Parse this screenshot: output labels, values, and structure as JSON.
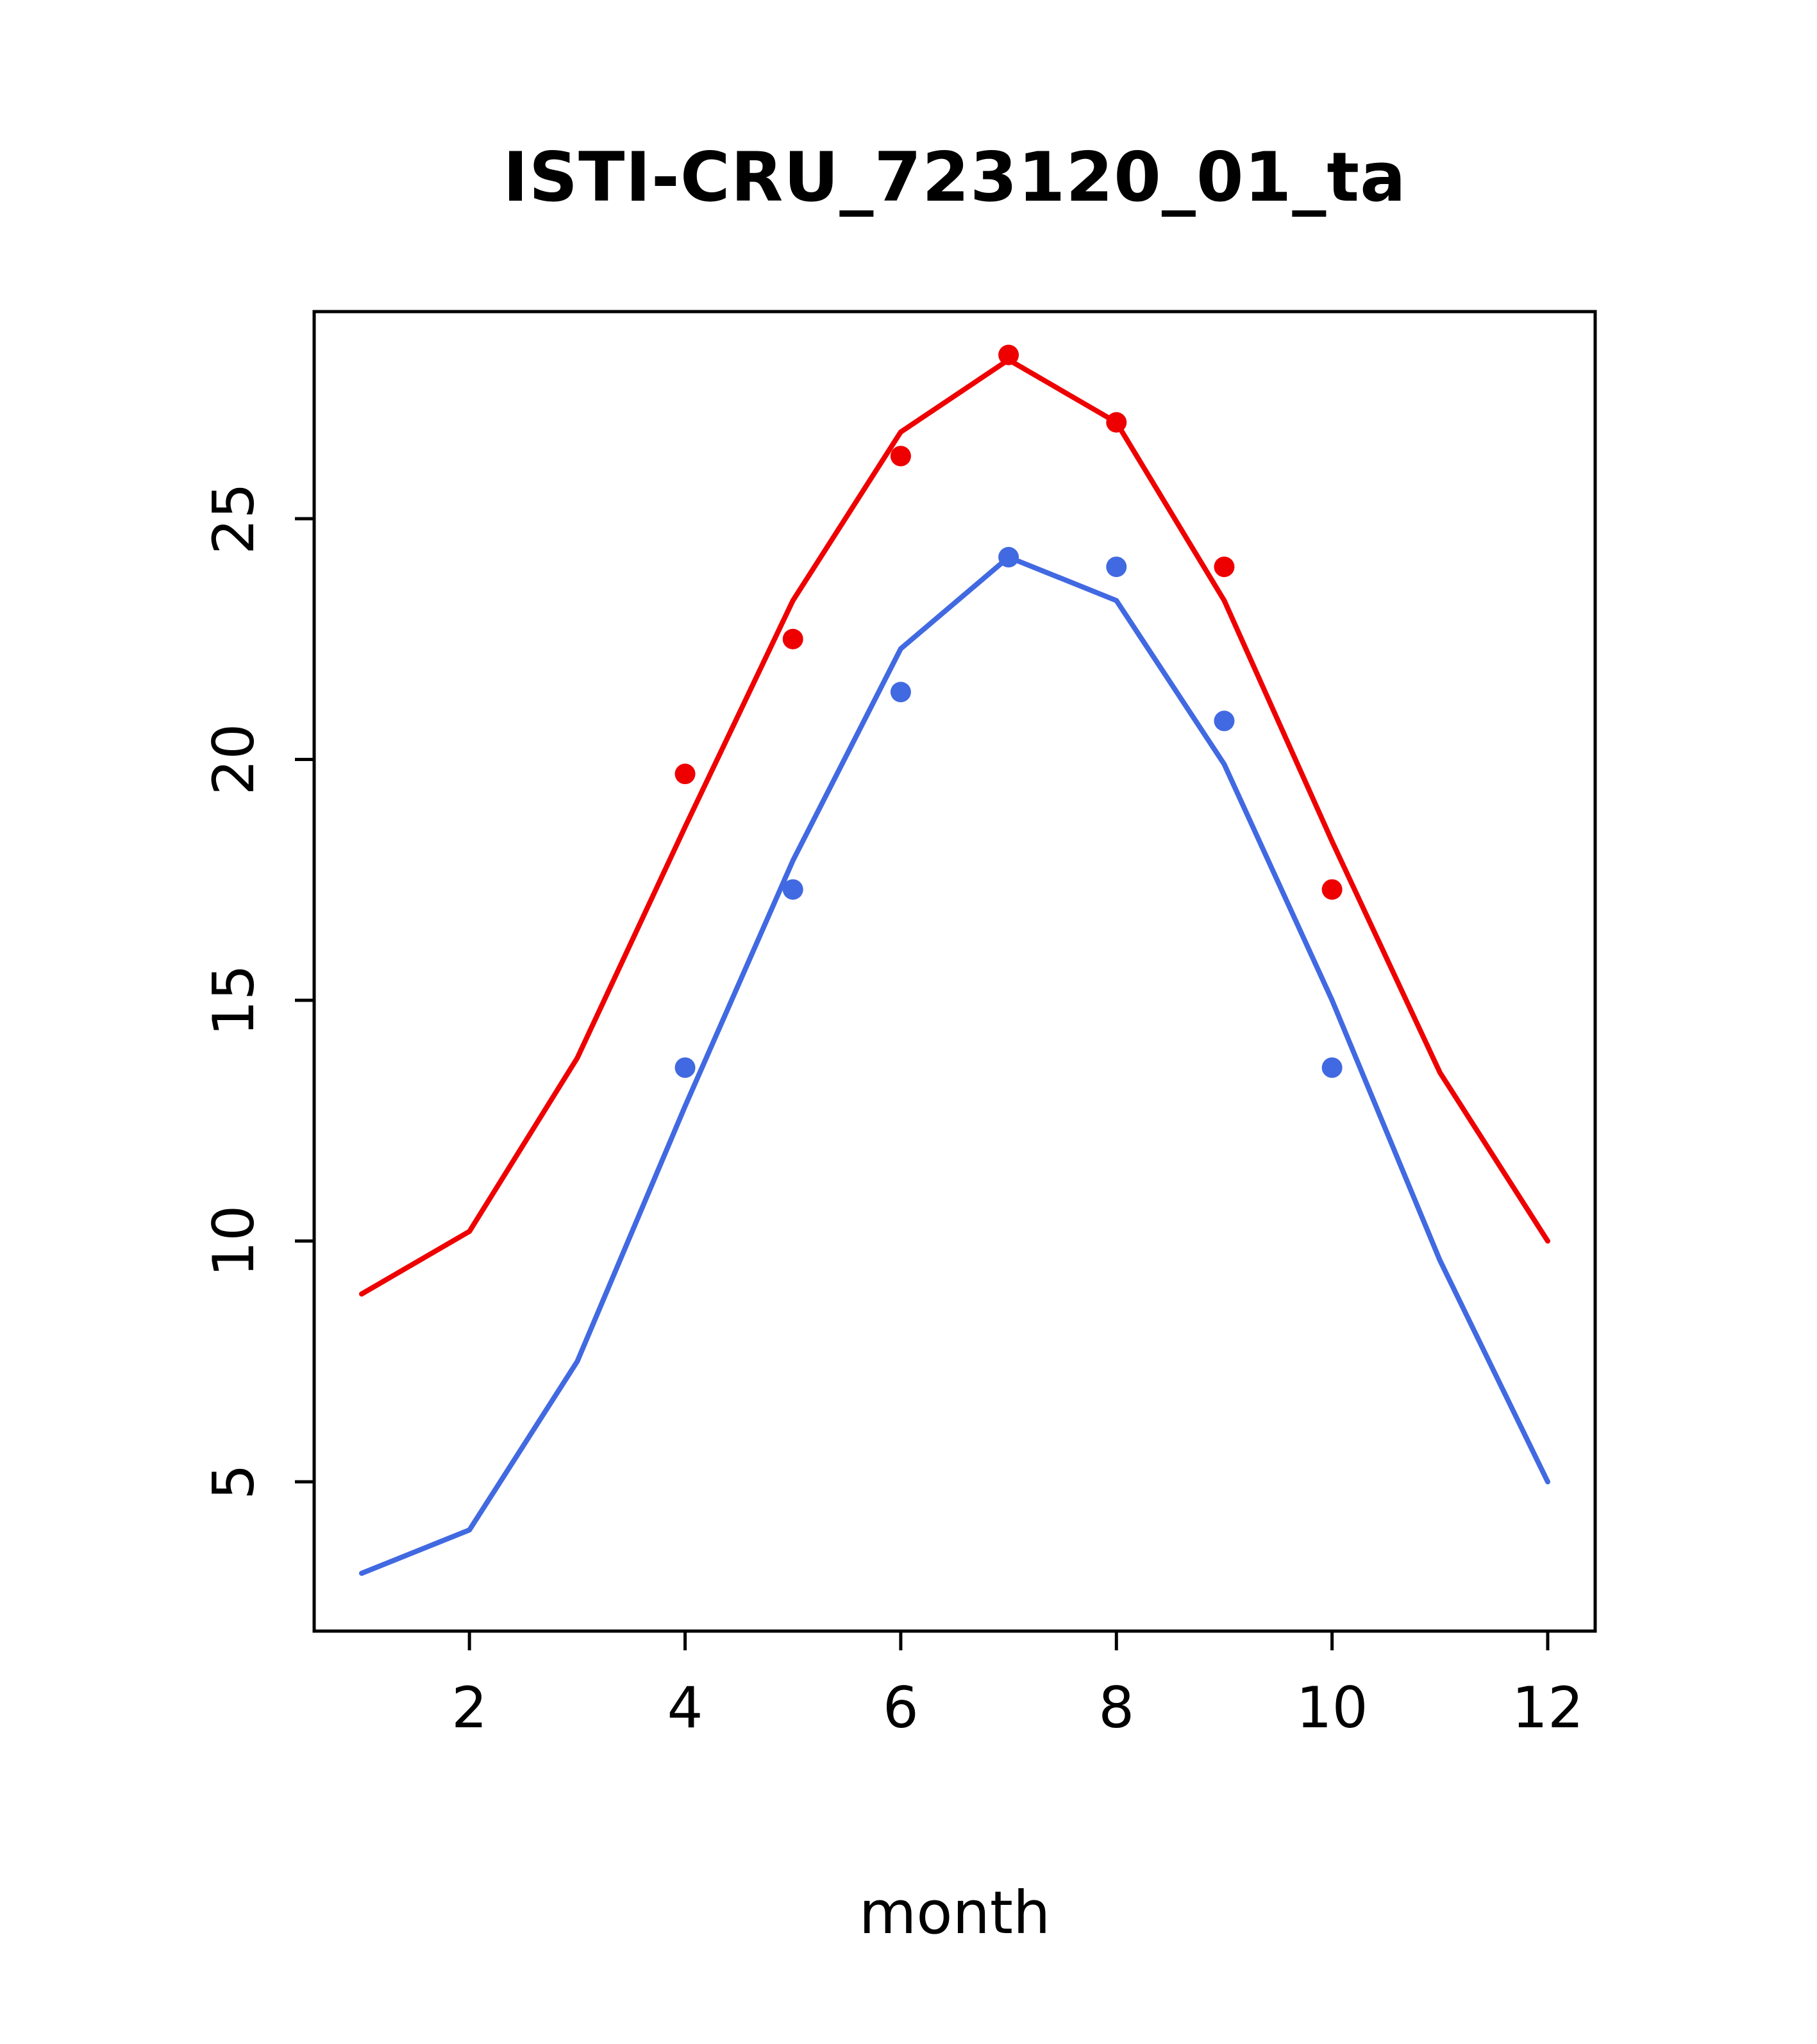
{
  "chart_data": {
    "type": "line",
    "title": "ISTI-CRU_723120_01_ta",
    "xlabel": "month",
    "ylabel": "",
    "x": [
      1,
      2,
      3,
      4,
      5,
      6,
      7,
      8,
      9,
      10,
      11,
      12
    ],
    "series": [
      {
        "name": "red-line",
        "kind": "line",
        "color": "#ee0000",
        "values": [
          8.9,
          10.2,
          13.8,
          18.6,
          23.3,
          26.8,
          28.3,
          27.0,
          23.3,
          18.3,
          13.5,
          10.0
        ]
      },
      {
        "name": "blue-line",
        "kind": "line",
        "color": "#4169e1",
        "values": [
          3.1,
          4.0,
          7.5,
          12.8,
          17.9,
          22.3,
          24.2,
          23.3,
          19.9,
          15.0,
          9.6,
          5.0
        ]
      },
      {
        "name": "red-points",
        "kind": "scatter",
        "color": "#ee0000",
        "x": [
          4,
          5,
          6,
          7,
          8,
          9,
          10
        ],
        "values": [
          19.7,
          22.5,
          26.3,
          28.4,
          27.0,
          24.0,
          17.3
        ]
      },
      {
        "name": "blue-points",
        "kind": "scatter",
        "color": "#4169e1",
        "x": [
          4,
          5,
          6,
          7,
          8,
          9,
          10
        ],
        "values": [
          13.6,
          17.3,
          21.4,
          24.2,
          24.0,
          20.8,
          13.6
        ]
      }
    ],
    "xlim": [
      0.56,
      12.44
    ],
    "ylim": [
      1.9,
      29.3
    ],
    "x_ticks": [
      2,
      4,
      6,
      8,
      10,
      12
    ],
    "y_ticks": [
      5,
      10,
      15,
      20,
      25
    ],
    "grid": false,
    "legend": null,
    "axis_color": "#000000",
    "background": "#ffffff"
  }
}
